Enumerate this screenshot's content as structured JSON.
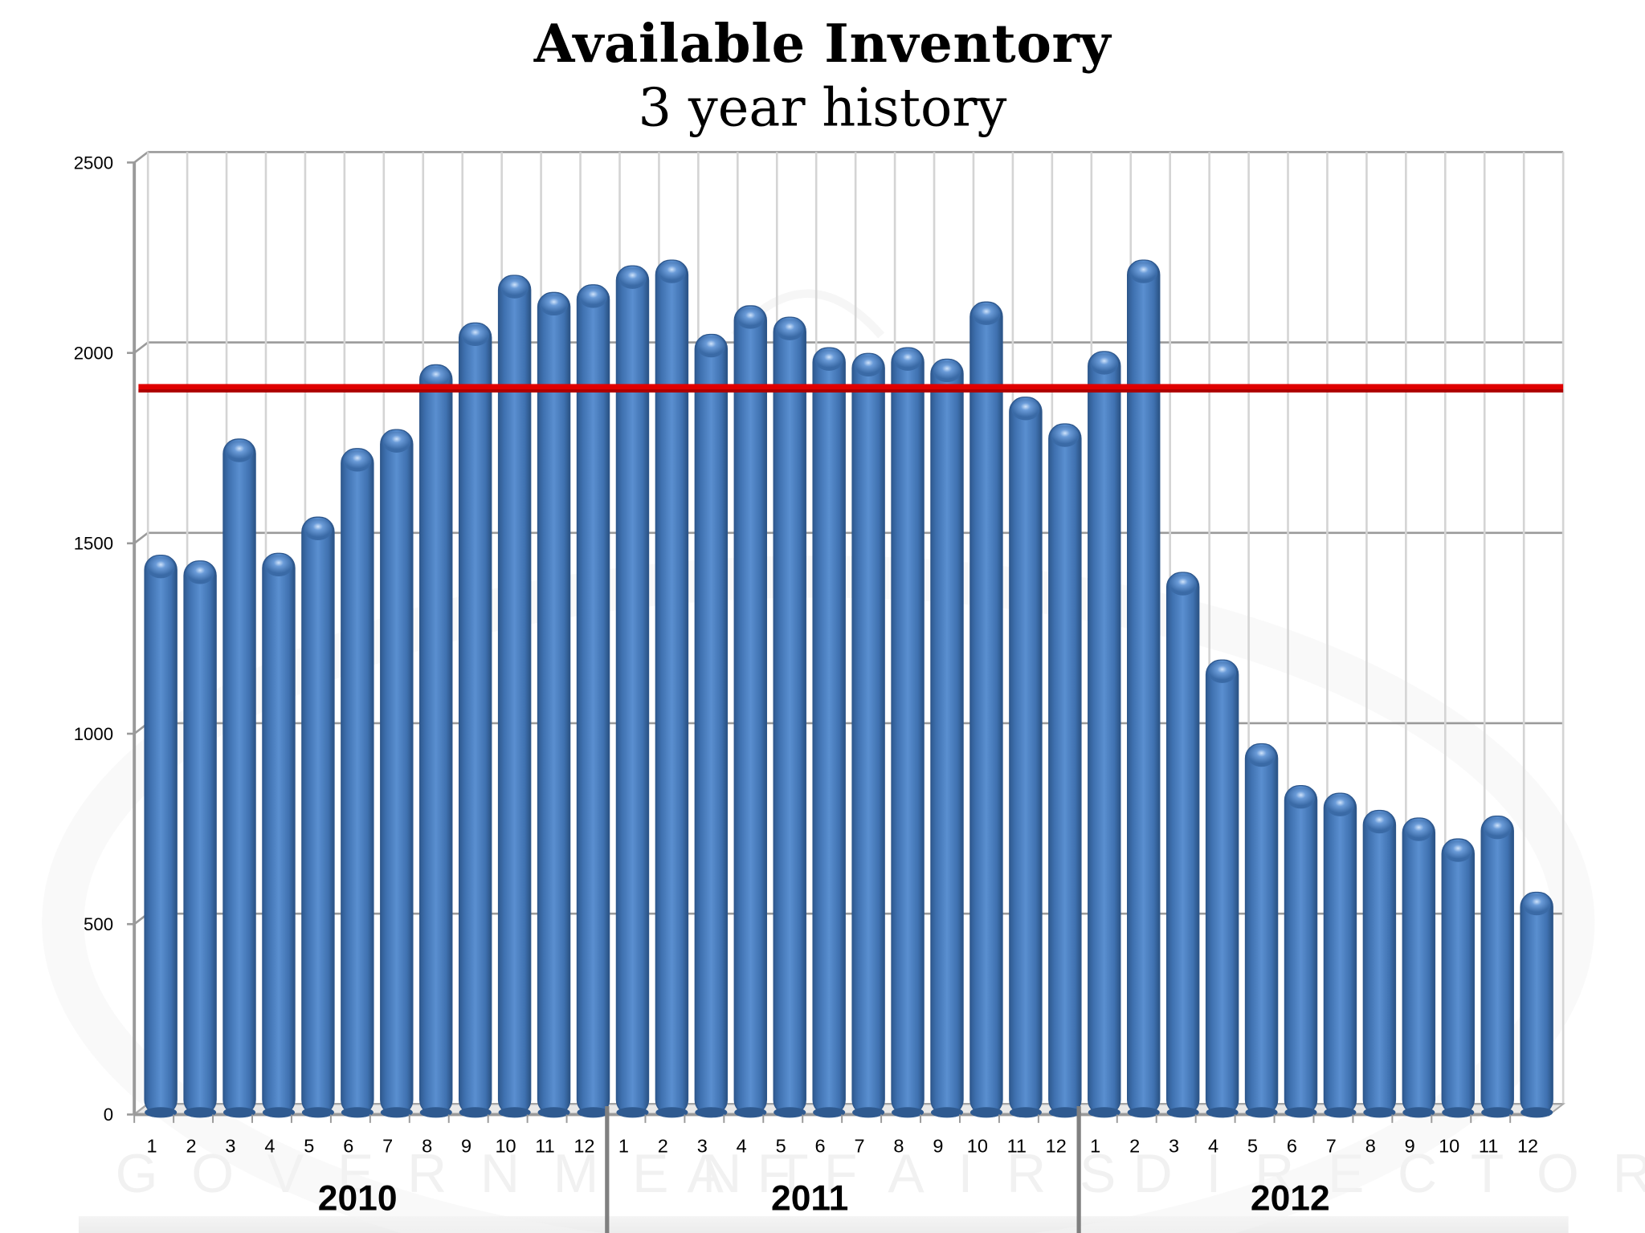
{
  "header": {
    "title": "Available Inventory",
    "subtitle": "3 year history"
  },
  "watermark": {
    "words": [
      "GOVERNMENT",
      "AFFAIRS",
      "DIRECTOR"
    ]
  },
  "colors": {
    "bar": "#4a7ebf",
    "bar_dark": "#2f5a90",
    "bar_light": "#6b9ad6",
    "reference_line": "#e00000",
    "gridline": "#9a9a9a",
    "minor_gridline": "#d4d4d4"
  },
  "chart_data": {
    "type": "bar",
    "title": "Available Inventory",
    "subtitle": "3 year history",
    "xlabel": "",
    "ylabel": "",
    "ylim": [
      0,
      2500
    ],
    "yticks": [
      0,
      500,
      1000,
      1500,
      2000,
      2500
    ],
    "grid": true,
    "legend": "none",
    "style": "3d-cylinder",
    "groups": [
      "2010",
      "2011",
      "2012"
    ],
    "categories": [
      "1",
      "2",
      "3",
      "4",
      "5",
      "6",
      "7",
      "8",
      "9",
      "10",
      "11",
      "12",
      "1",
      "2",
      "3",
      "4",
      "5",
      "6",
      "7",
      "8",
      "9",
      "10",
      "11",
      "12",
      "1",
      "2",
      "3",
      "4",
      "5",
      "6",
      "7",
      "8",
      "9",
      "10",
      "11",
      "12"
    ],
    "series": [
      {
        "name": "Available Inventory",
        "values": [
          1455,
          1440,
          1760,
          1460,
          1555,
          1735,
          1785,
          1955,
          2065,
          2190,
          2145,
          2165,
          2215,
          2230,
          2035,
          2110,
          2080,
          2000,
          1985,
          2000,
          1970,
          2120,
          1870,
          1800,
          1990,
          2230,
          1410,
          1180,
          960,
          850,
          830,
          785,
          765,
          710,
          770,
          570
        ]
      }
    ],
    "reference_line": {
      "value": 1910,
      "color": "#e00000"
    }
  }
}
